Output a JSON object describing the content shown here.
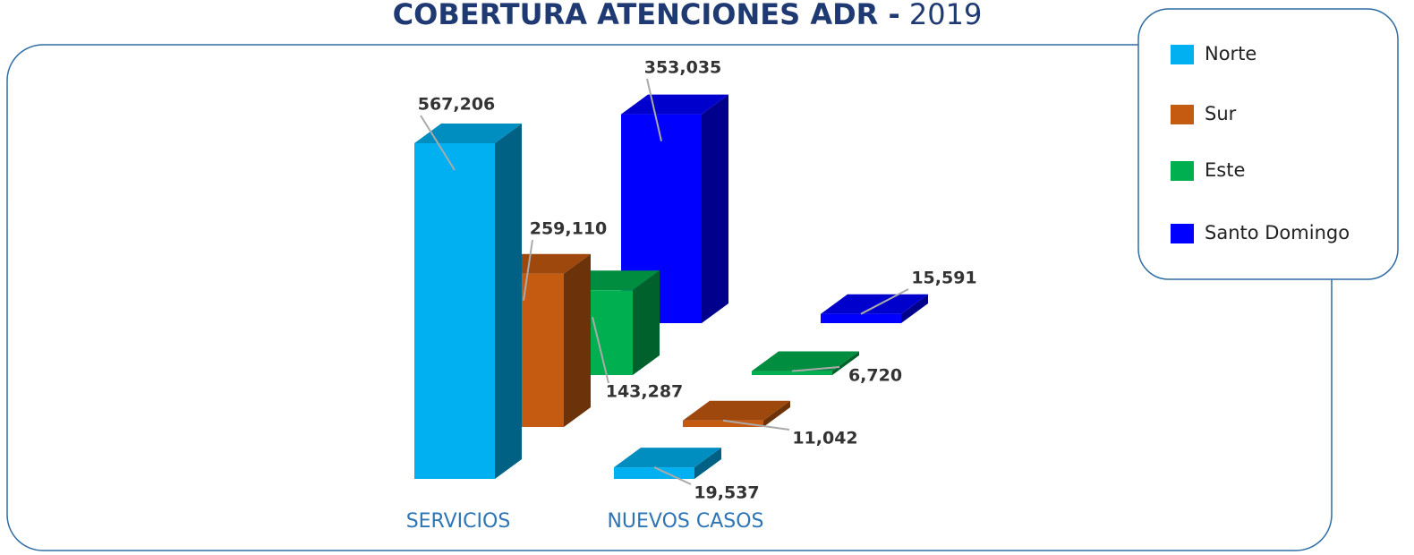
{
  "chart_data": {
    "type": "bar3d",
    "title": "COBERTURA ATENCIONES ADR -",
    "subtitle": "2019",
    "categories": [
      "SERVICIOS",
      "NUEVOS CASOS"
    ],
    "series": [
      {
        "name": "Norte",
        "color": "#00b0f0",
        "values": [
          567206,
          19537
        ],
        "value_labels": [
          "567,206",
          "19,537"
        ]
      },
      {
        "name": "Sur",
        "color": "#c55a11",
        "values": [
          259110,
          11042
        ],
        "value_labels": [
          "259,110",
          "11,042"
        ]
      },
      {
        "name": "Este",
        "color": "#00b050",
        "values": [
          143287,
          6720
        ],
        "value_labels": [
          "143,287",
          "6,720"
        ]
      },
      {
        "name": "Santo Domingo",
        "color": "#0000ff",
        "values": [
          353035,
          15591
        ],
        "value_labels": [
          "353,035",
          "15,591"
        ]
      }
    ],
    "legend": "top-right"
  }
}
